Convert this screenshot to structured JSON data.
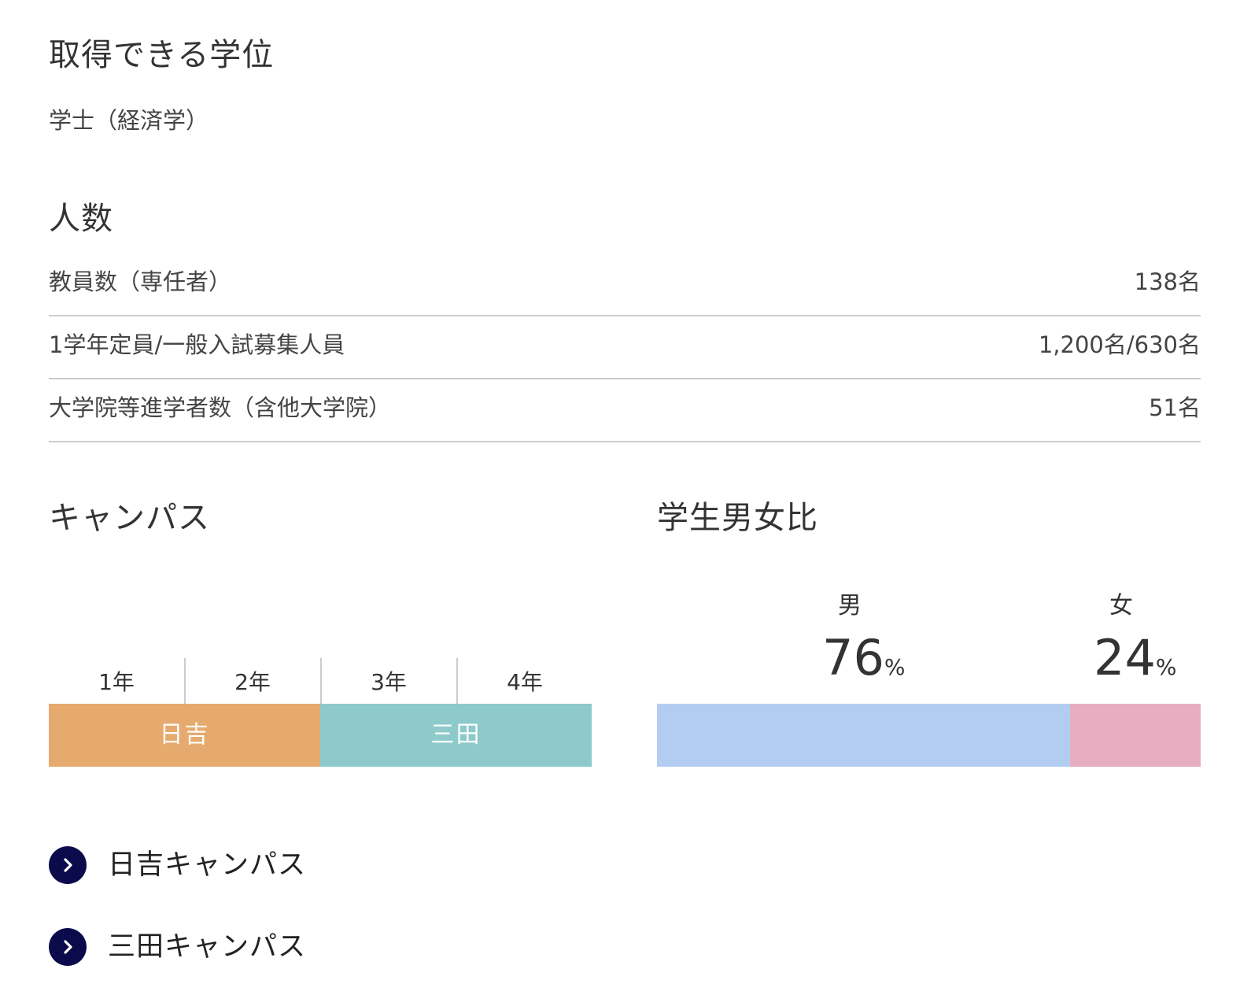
{
  "degree": {
    "heading": "取得できる学位",
    "value": "学士（経済学）"
  },
  "headcount": {
    "heading": "人数",
    "rows": [
      {
        "label": "教員数（専任者）",
        "value": "138名"
      },
      {
        "label": "1学年定員/一般入試募集人員",
        "value": "1,200名/630名"
      },
      {
        "label": "大学院等進学者数（含他大学院）",
        "value": "51名"
      }
    ]
  },
  "campus": {
    "heading": "キャンパス",
    "years": [
      "1年",
      "2年",
      "3年",
      "4年"
    ],
    "segments": [
      {
        "label": "日吉",
        "years": 2,
        "color": "#e6aa6e"
      },
      {
        "label": "三田",
        "years": 2,
        "color": "#8ecacb"
      }
    ]
  },
  "gender": {
    "heading": "学生男女比",
    "male_label": "男",
    "male_pct": "76",
    "female_label": "女",
    "female_pct": "24",
    "unit": "%",
    "male_color": "#b2cdf0",
    "female_color": "#e7aec1"
  },
  "links": [
    {
      "label": "日吉キャンパス",
      "icon": "chevron-right-icon"
    },
    {
      "label": "三田キャンパス",
      "icon": "chevron-right-icon"
    }
  ]
}
